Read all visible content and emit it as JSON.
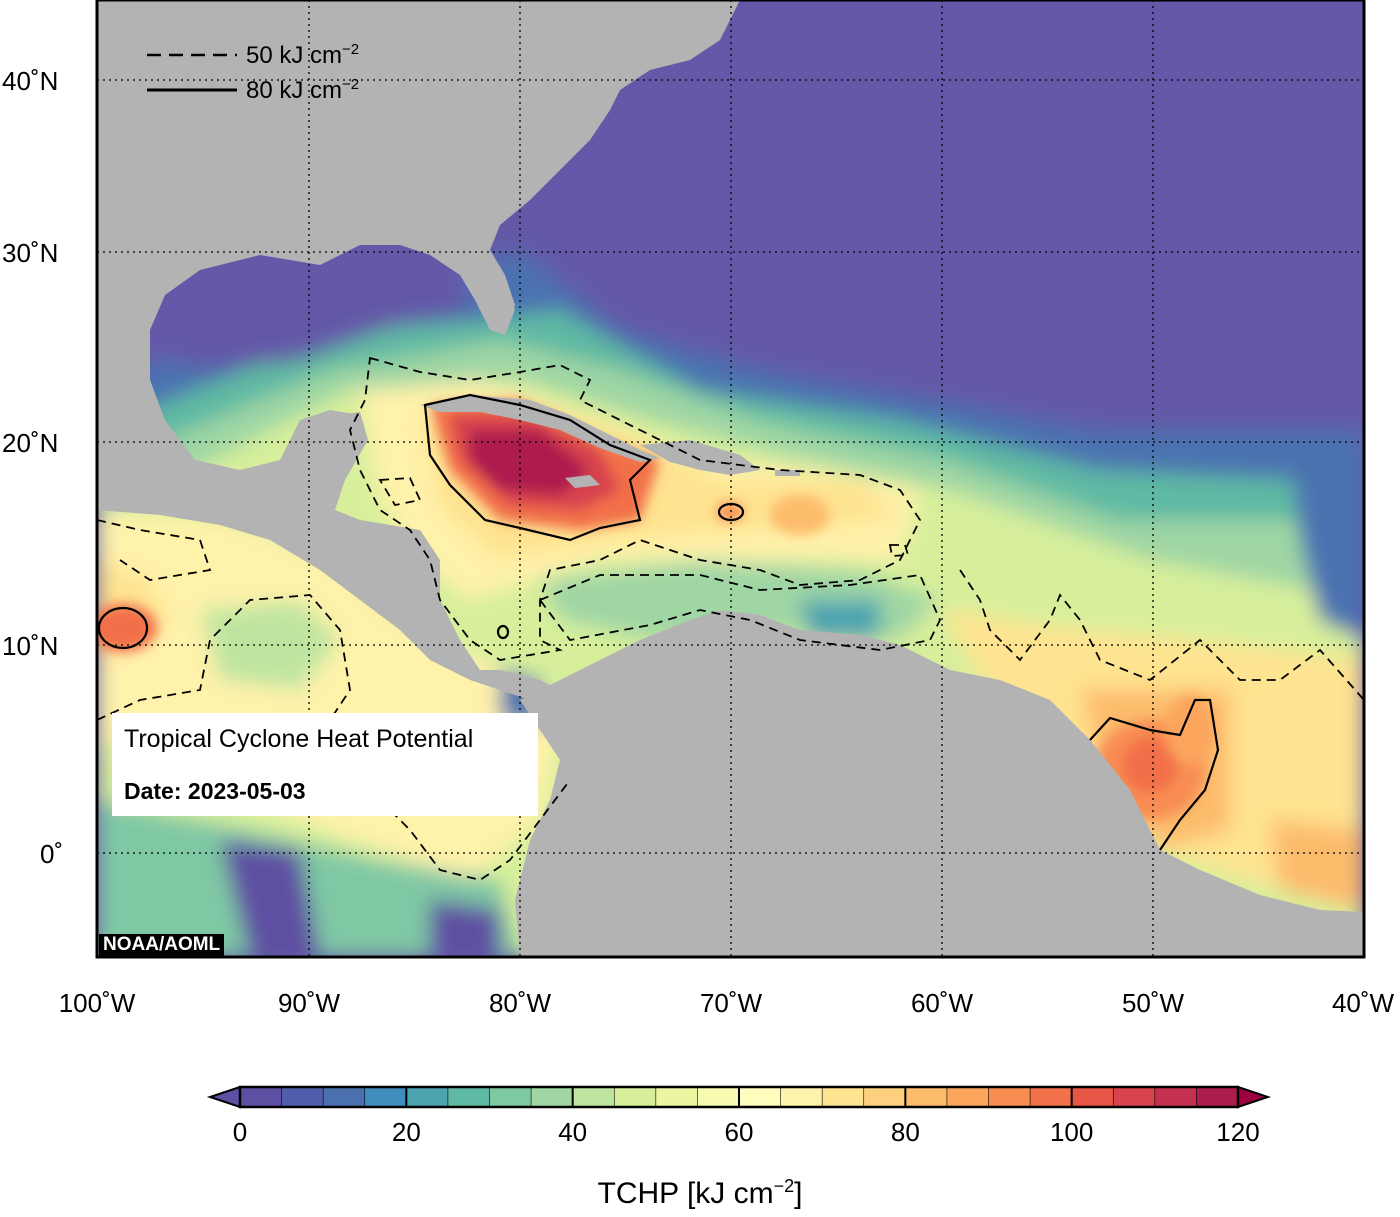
{
  "map": {
    "title": "Tropical Cyclone Heat Potential",
    "date_label": "Date:",
    "date_value": "2023-05-03",
    "credit": "NOAA/AOML",
    "lat_labels": [
      "40˚N",
      "30˚N",
      "20˚N",
      "10˚N",
      "0˚"
    ],
    "lon_labels": [
      "100˚W",
      "90˚W",
      "80˚W",
      "70˚W",
      "60˚W",
      "50˚W",
      "40˚W"
    ],
    "legend": [
      {
        "style": "dashed",
        "value": "50",
        "unit": "kJ cm",
        "exp": "−2"
      },
      {
        "style": "solid",
        "value": "80",
        "unit": "kJ cm",
        "exp": "−2"
      }
    ],
    "colors": {
      "land": "#b3b3b3",
      "cold_ocean": "#6459a8",
      "frame": "#000000"
    }
  },
  "colorbar": {
    "title": "TCHP [kJ cm",
    "title_exp": "−2",
    "title_close": "]",
    "ticks": [
      "0",
      "20",
      "40",
      "60",
      "80",
      "100",
      "120"
    ],
    "min": 0,
    "max": 120,
    "step": 5,
    "palette": [
      "#5e4fa2",
      "#4f5daa",
      "#4a70b0",
      "#3f8cbd",
      "#4ba3b0",
      "#5fb9a3",
      "#7fc8a4",
      "#9fd6a4",
      "#bee5a0",
      "#d7ef9b",
      "#ecf6a2",
      "#f7fbb1",
      "#fffebe",
      "#fff2aa",
      "#fee390",
      "#fdd080",
      "#fdbb6c",
      "#fca55d",
      "#f88d52",
      "#f2704a",
      "#e65546",
      "#d8434e",
      "#c4304f",
      "#ad1c4e"
    ]
  }
}
